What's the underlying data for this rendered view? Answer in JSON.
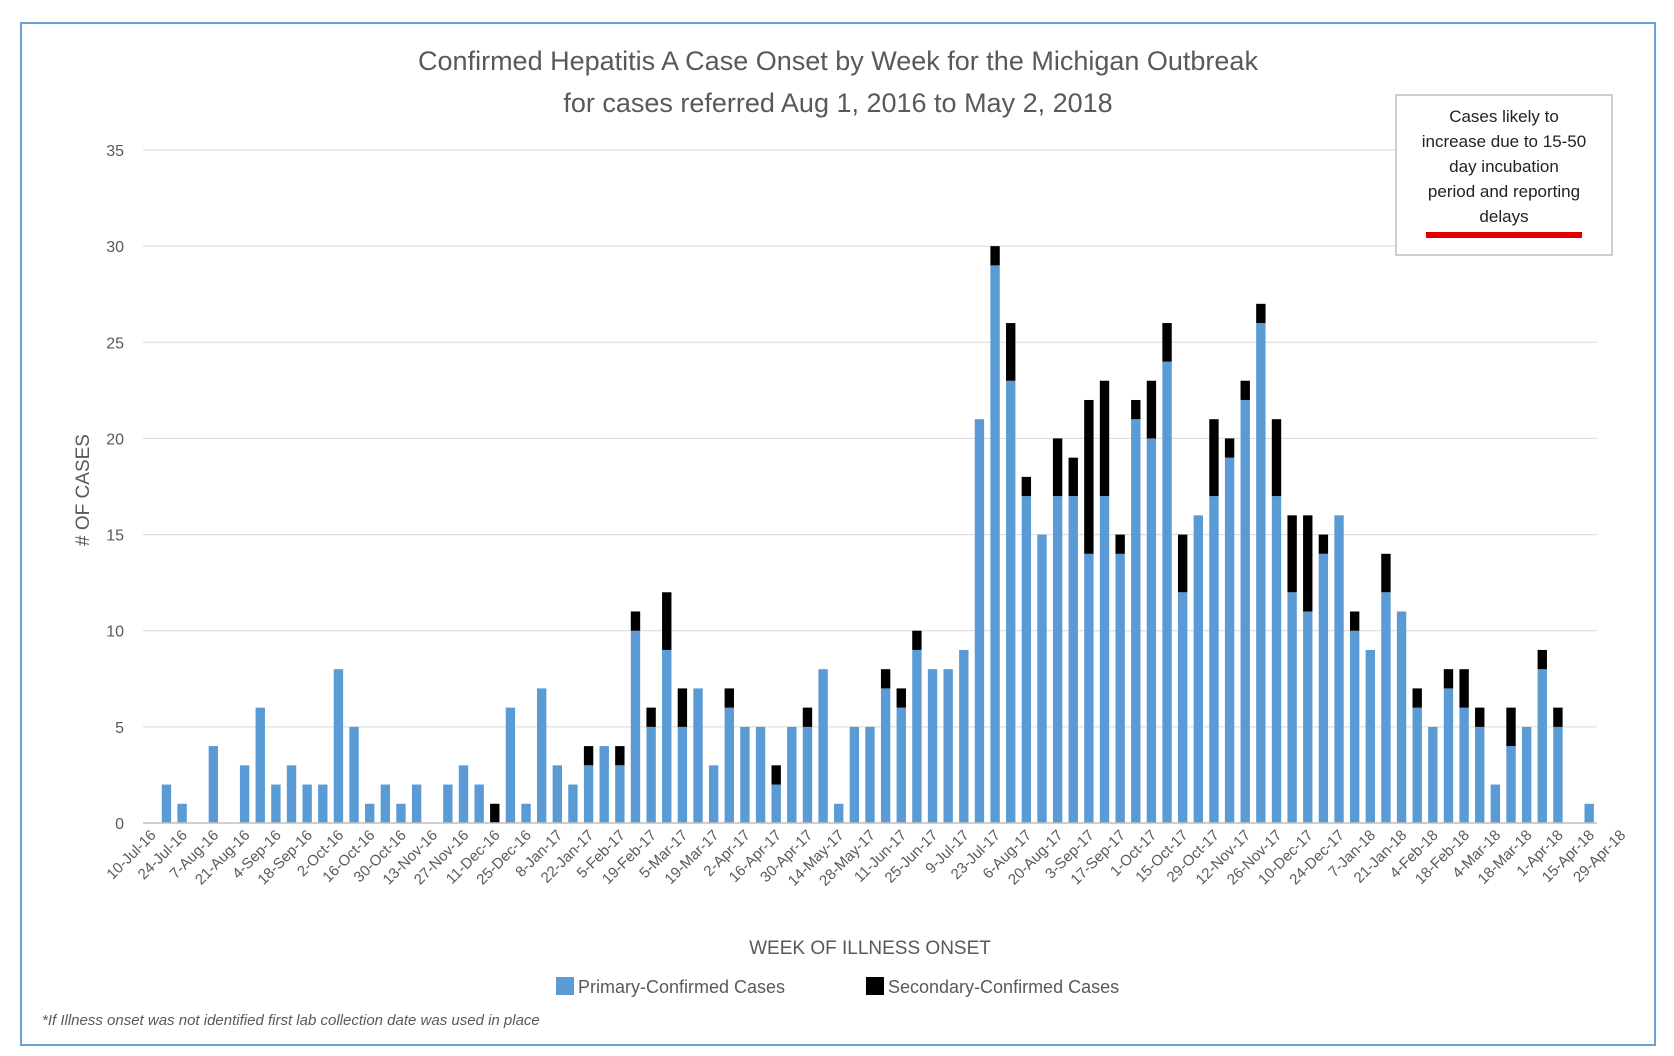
{
  "chart_data": {
    "type": "bar",
    "stacked": true,
    "title": "Confirmed  Hepatitis A Case Onset by Week for the Michigan Outbreak",
    "subtitle": "for cases referred  Aug 1, 2016 to May 2, 2018",
    "xlabel": "WEEK OF ILLNESS ONSET",
    "ylabel": "# OF CASES",
    "ylim": [
      0,
      35
    ],
    "yticks": [
      0,
      5,
      10,
      15,
      20,
      25,
      30,
      35
    ],
    "grid": true,
    "legend_position": "bottom",
    "x_tick_labels": [
      "10-Jul-16",
      "24-Jul-16",
      "7-Aug-16",
      "21-Aug-16",
      "4-Sep-16",
      "18-Sep-16",
      "2-Oct-16",
      "16-Oct-16",
      "30-Oct-16",
      "13-Nov-16",
      "27-Nov-16",
      "11-Dec-16",
      "25-Dec-16",
      "8-Jan-17",
      "22-Jan-17",
      "5-Feb-17",
      "19-Feb-17",
      "5-Mar-17",
      "19-Mar-17",
      "2-Apr-17",
      "16-Apr-17",
      "30-Apr-17",
      "14-May-17",
      "28-May-17",
      "11-Jun-17",
      "25-Jun-17",
      "9-Jul-17",
      "23-Jul-17",
      "6-Aug-17",
      "20-Aug-17",
      "3-Sep-17",
      "17-Sep-17",
      "1-Oct-17",
      "15-Oct-17",
      "29-Oct-17",
      "12-Nov-17",
      "26-Nov-17",
      "10-Dec-17",
      "24-Dec-17",
      "7-Jan-18",
      "21-Jan-18",
      "4-Feb-18",
      "18-Feb-18",
      "4-Mar-18",
      "18-Mar-18",
      "1-Apr-18",
      "15-Apr-18",
      "29-Apr-18"
    ],
    "series": [
      {
        "name": "Primary-Confirmed Cases",
        "color": "#5b9bd5",
        "values": [
          0,
          2,
          1,
          0,
          4,
          0,
          3,
          6,
          2,
          3,
          2,
          2,
          8,
          5,
          1,
          2,
          1,
          2,
          0,
          2,
          3,
          2,
          0,
          6,
          1,
          7,
          3,
          2,
          3,
          4,
          3,
          10,
          5,
          9,
          5,
          7,
          3,
          6,
          5,
          5,
          2,
          5,
          5,
          8,
          1,
          5,
          5,
          7,
          6,
          9,
          8,
          8,
          9,
          21,
          29,
          23,
          17,
          15,
          17,
          17,
          14,
          17,
          14,
          21,
          20,
          24,
          12,
          16,
          17,
          19,
          22,
          26,
          17,
          12,
          11,
          14,
          16,
          10,
          9,
          12,
          11,
          6,
          5,
          7,
          6,
          5,
          2,
          4,
          5,
          8,
          5,
          0,
          1
        ]
      },
      {
        "name": "Secondary-Confirmed Cases",
        "color": "#000000",
        "values": [
          0,
          0,
          0,
          0,
          0,
          0,
          0,
          0,
          0,
          0,
          0,
          0,
          0,
          0,
          0,
          0,
          0,
          0,
          0,
          0,
          0,
          0,
          1,
          0,
          0,
          0,
          0,
          0,
          1,
          0,
          1,
          1,
          1,
          3,
          2,
          0,
          0,
          1,
          0,
          0,
          1,
          0,
          1,
          0,
          0,
          0,
          0,
          1,
          1,
          1,
          0,
          0,
          0,
          0,
          1,
          3,
          1,
          0,
          3,
          2,
          8,
          6,
          1,
          1,
          3,
          2,
          3,
          0,
          4,
          1,
          1,
          1,
          4,
          4,
          5,
          1,
          0,
          1,
          0,
          2,
          0,
          1,
          0,
          1,
          2,
          1,
          0,
          2,
          0,
          1,
          1,
          0,
          0
        ]
      }
    ]
  },
  "note_box": {
    "text_lines": [
      "Cases likely to",
      "increase due to 15-50",
      "day incubation",
      "period and reporting",
      "delays"
    ],
    "underline_color": "#e00000"
  },
  "footnote": "*If Illness onset was not identified first lab collection  date was used in place"
}
